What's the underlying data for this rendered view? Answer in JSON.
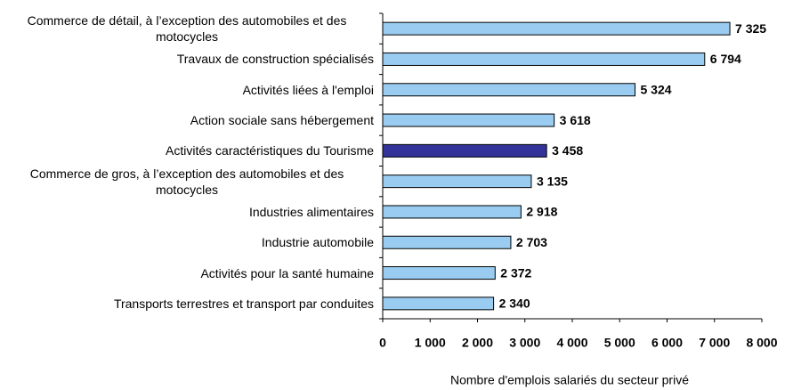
{
  "chart_data": {
    "type": "hbar",
    "categories": [
      "Commerce de détail, à l’exception des automobiles et des motocycles",
      "Travaux de construction spécialisés",
      "Activités liées à l'emploi",
      "Action sociale sans hébergement",
      "Activités caractéristiques du Tourisme",
      "Commerce de gros, à l’exception des automobiles et des motocycles",
      "Industries alimentaires",
      "Industrie automobile",
      "Activités pour la santé humaine",
      "Transports terrestres et transport par conduites"
    ],
    "values": [
      7325,
      6794,
      5324,
      3618,
      3458,
      3135,
      2918,
      2703,
      2372,
      2340
    ],
    "value_labels": [
      "7 325",
      "6 794",
      "5 324",
      "3 618",
      "3 458",
      "3 135",
      "2 918",
      "2 703",
      "2 372",
      "2 340"
    ],
    "colors": [
      "#99ccf0",
      "#99ccf0",
      "#99ccf0",
      "#99ccf0",
      "#333399",
      "#99ccf0",
      "#99ccf0",
      "#99ccf0",
      "#99ccf0",
      "#99ccf0"
    ],
    "xlabel": "Nombre d'emplois salariés du secteur privé",
    "xlim": [
      0,
      8000
    ],
    "xticks": [
      0,
      {
        "value": 1000,
        "label": "1 000"
      },
      {
        "value": 2000,
        "label": "2 000"
      },
      {
        "value": 3000,
        "label": "3 000"
      },
      {
        "value": 4000,
        "label": "4 000"
      },
      {
        "value": 5000,
        "label": "5 000"
      },
      {
        "value": 6000,
        "label": "6 000"
      },
      {
        "value": 7000,
        "label": "7 000"
      },
      {
        "value": 8000,
        "label": "8 000"
      }
    ],
    "grid": false
  }
}
